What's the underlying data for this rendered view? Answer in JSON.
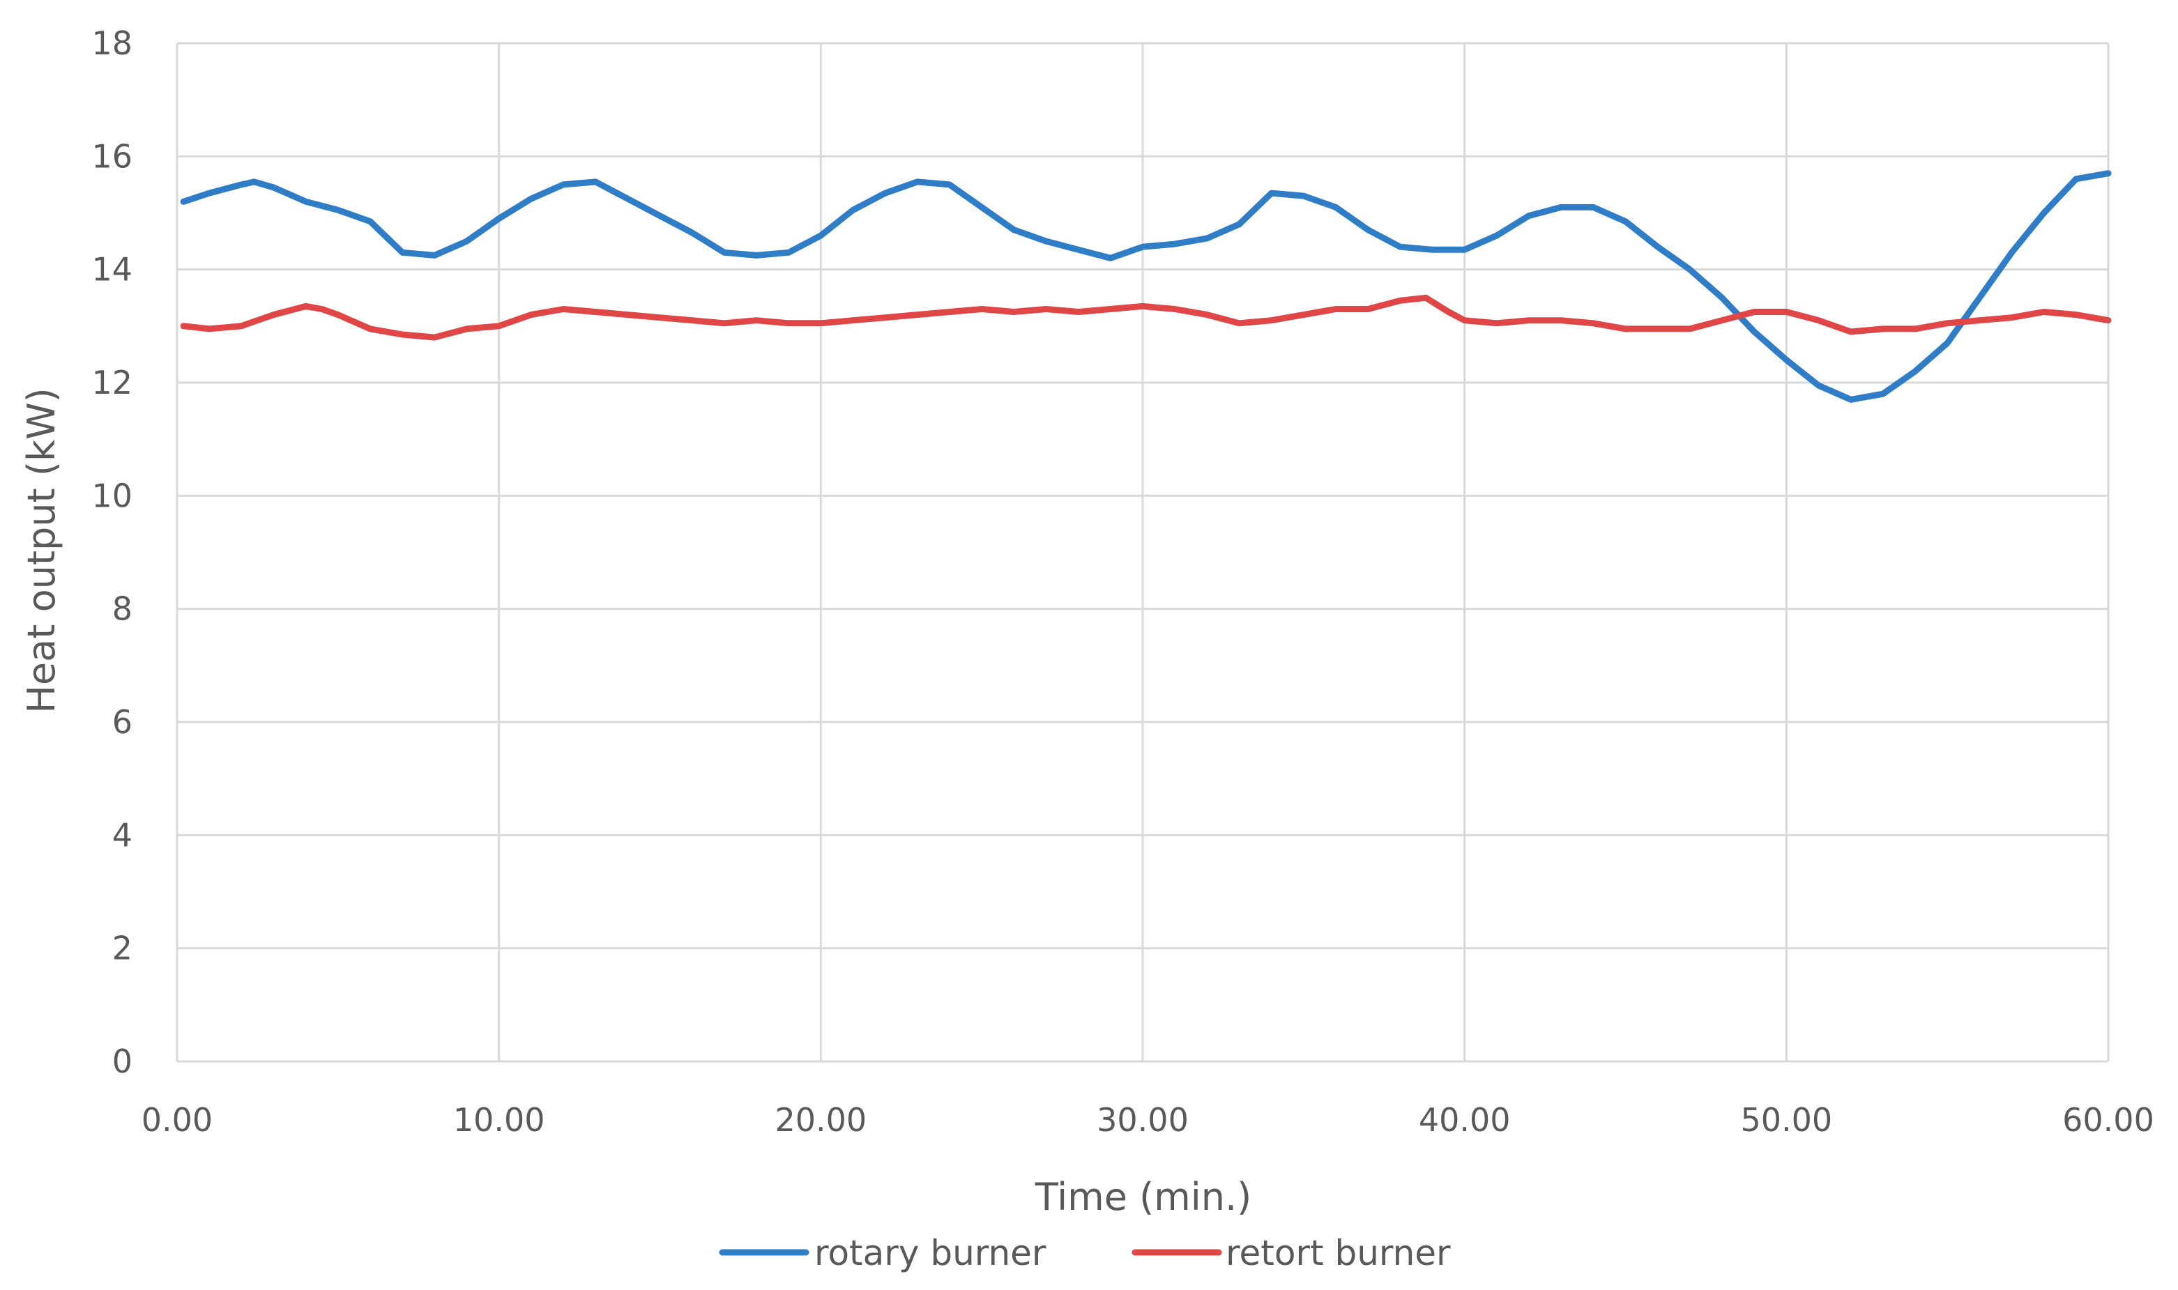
{
  "chart_data": {
    "type": "line",
    "title": "",
    "xlabel": "Time (min.)",
    "ylabel": "Heat output (kW)",
    "xlim": [
      0,
      60
    ],
    "ylim": [
      0,
      18
    ],
    "x_ticks": [
      0,
      10,
      20,
      30,
      40,
      50,
      60
    ],
    "x_tick_labels": [
      "0.00",
      "10.00",
      "20.00",
      "30.00",
      "40.00",
      "50.00",
      "60.00"
    ],
    "y_ticks": [
      0,
      2,
      4,
      6,
      8,
      10,
      12,
      14,
      16,
      18
    ],
    "y_tick_labels": [
      "0",
      "2",
      "4",
      "6",
      "8",
      "10",
      "12",
      "14",
      "16",
      "18"
    ],
    "grid": true,
    "legend_position": "bottom",
    "series": [
      {
        "name": "rotary burner",
        "color": "#2e7dc6",
        "x": [
          0.2,
          1.0,
          2.0,
          2.4,
          3.0,
          4.0,
          5.0,
          6.0,
          7.0,
          8.0,
          9.0,
          10.0,
          11.0,
          12.0,
          13.0,
          14.0,
          15.0,
          16.0,
          17.0,
          18.0,
          19.0,
          20.0,
          21.0,
          22.0,
          23.0,
          24.0,
          25.0,
          26.0,
          27.0,
          28.0,
          29.0,
          30.0,
          31.0,
          32.0,
          33.0,
          34.0,
          35.0,
          36.0,
          37.0,
          38.0,
          39.0,
          40.0,
          41.0,
          42.0,
          43.0,
          44.0,
          45.0,
          46.0,
          47.0,
          48.0,
          49.0,
          50.0,
          51.0,
          52.0,
          53.0,
          54.0,
          55.0,
          56.0,
          57.0,
          58.0,
          59.0,
          60.0
        ],
        "y": [
          15.2,
          15.35,
          15.5,
          15.55,
          15.45,
          15.2,
          15.05,
          14.85,
          14.3,
          14.25,
          14.5,
          14.9,
          15.25,
          15.5,
          15.55,
          15.25,
          14.95,
          14.65,
          14.3,
          14.25,
          14.3,
          14.6,
          15.05,
          15.35,
          15.55,
          15.5,
          15.1,
          14.7,
          14.5,
          14.35,
          14.2,
          14.4,
          14.45,
          14.55,
          14.8,
          15.35,
          15.3,
          15.1,
          14.7,
          14.4,
          14.35,
          14.35,
          14.6,
          14.95,
          15.1,
          15.1,
          14.85,
          14.4,
          14.0,
          13.5,
          12.9,
          12.4,
          11.95,
          11.7,
          11.8,
          12.2,
          12.7,
          13.5,
          14.3,
          15.0,
          15.6,
          15.7
        ]
      },
      {
        "name": "retort burner",
        "color": "#e04646",
        "x": [
          0.2,
          1.0,
          2.0,
          3.0,
          4.0,
          4.5,
          5.0,
          6.0,
          7.0,
          8.0,
          9.0,
          10.0,
          11.0,
          12.0,
          13.0,
          14.0,
          15.0,
          16.0,
          17.0,
          18.0,
          19.0,
          20.0,
          21.0,
          22.0,
          23.0,
          24.0,
          25.0,
          26.0,
          27.0,
          28.0,
          29.0,
          30.0,
          31.0,
          32.0,
          33.0,
          34.0,
          35.0,
          36.0,
          37.0,
          38.0,
          38.8,
          39.5,
          40.0,
          41.0,
          42.0,
          43.0,
          44.0,
          45.0,
          46.0,
          47.0,
          48.0,
          49.0,
          50.0,
          51.0,
          52.0,
          53.0,
          54.0,
          55.0,
          56.0,
          57.0,
          58.0,
          59.0,
          60.0
        ],
        "y": [
          13.0,
          12.95,
          13.0,
          13.2,
          13.35,
          13.3,
          13.2,
          12.95,
          12.85,
          12.8,
          12.95,
          13.0,
          13.2,
          13.3,
          13.25,
          13.2,
          13.15,
          13.1,
          13.05,
          13.1,
          13.05,
          13.05,
          13.1,
          13.15,
          13.2,
          13.25,
          13.3,
          13.25,
          13.3,
          13.25,
          13.3,
          13.35,
          13.3,
          13.2,
          13.05,
          13.1,
          13.2,
          13.3,
          13.3,
          13.45,
          13.5,
          13.25,
          13.1,
          13.05,
          13.1,
          13.1,
          13.05,
          12.95,
          12.95,
          12.95,
          13.1,
          13.25,
          13.25,
          13.1,
          12.9,
          12.95,
          12.95,
          13.05,
          13.1,
          13.15,
          13.25,
          13.2,
          13.1
        ]
      }
    ]
  }
}
